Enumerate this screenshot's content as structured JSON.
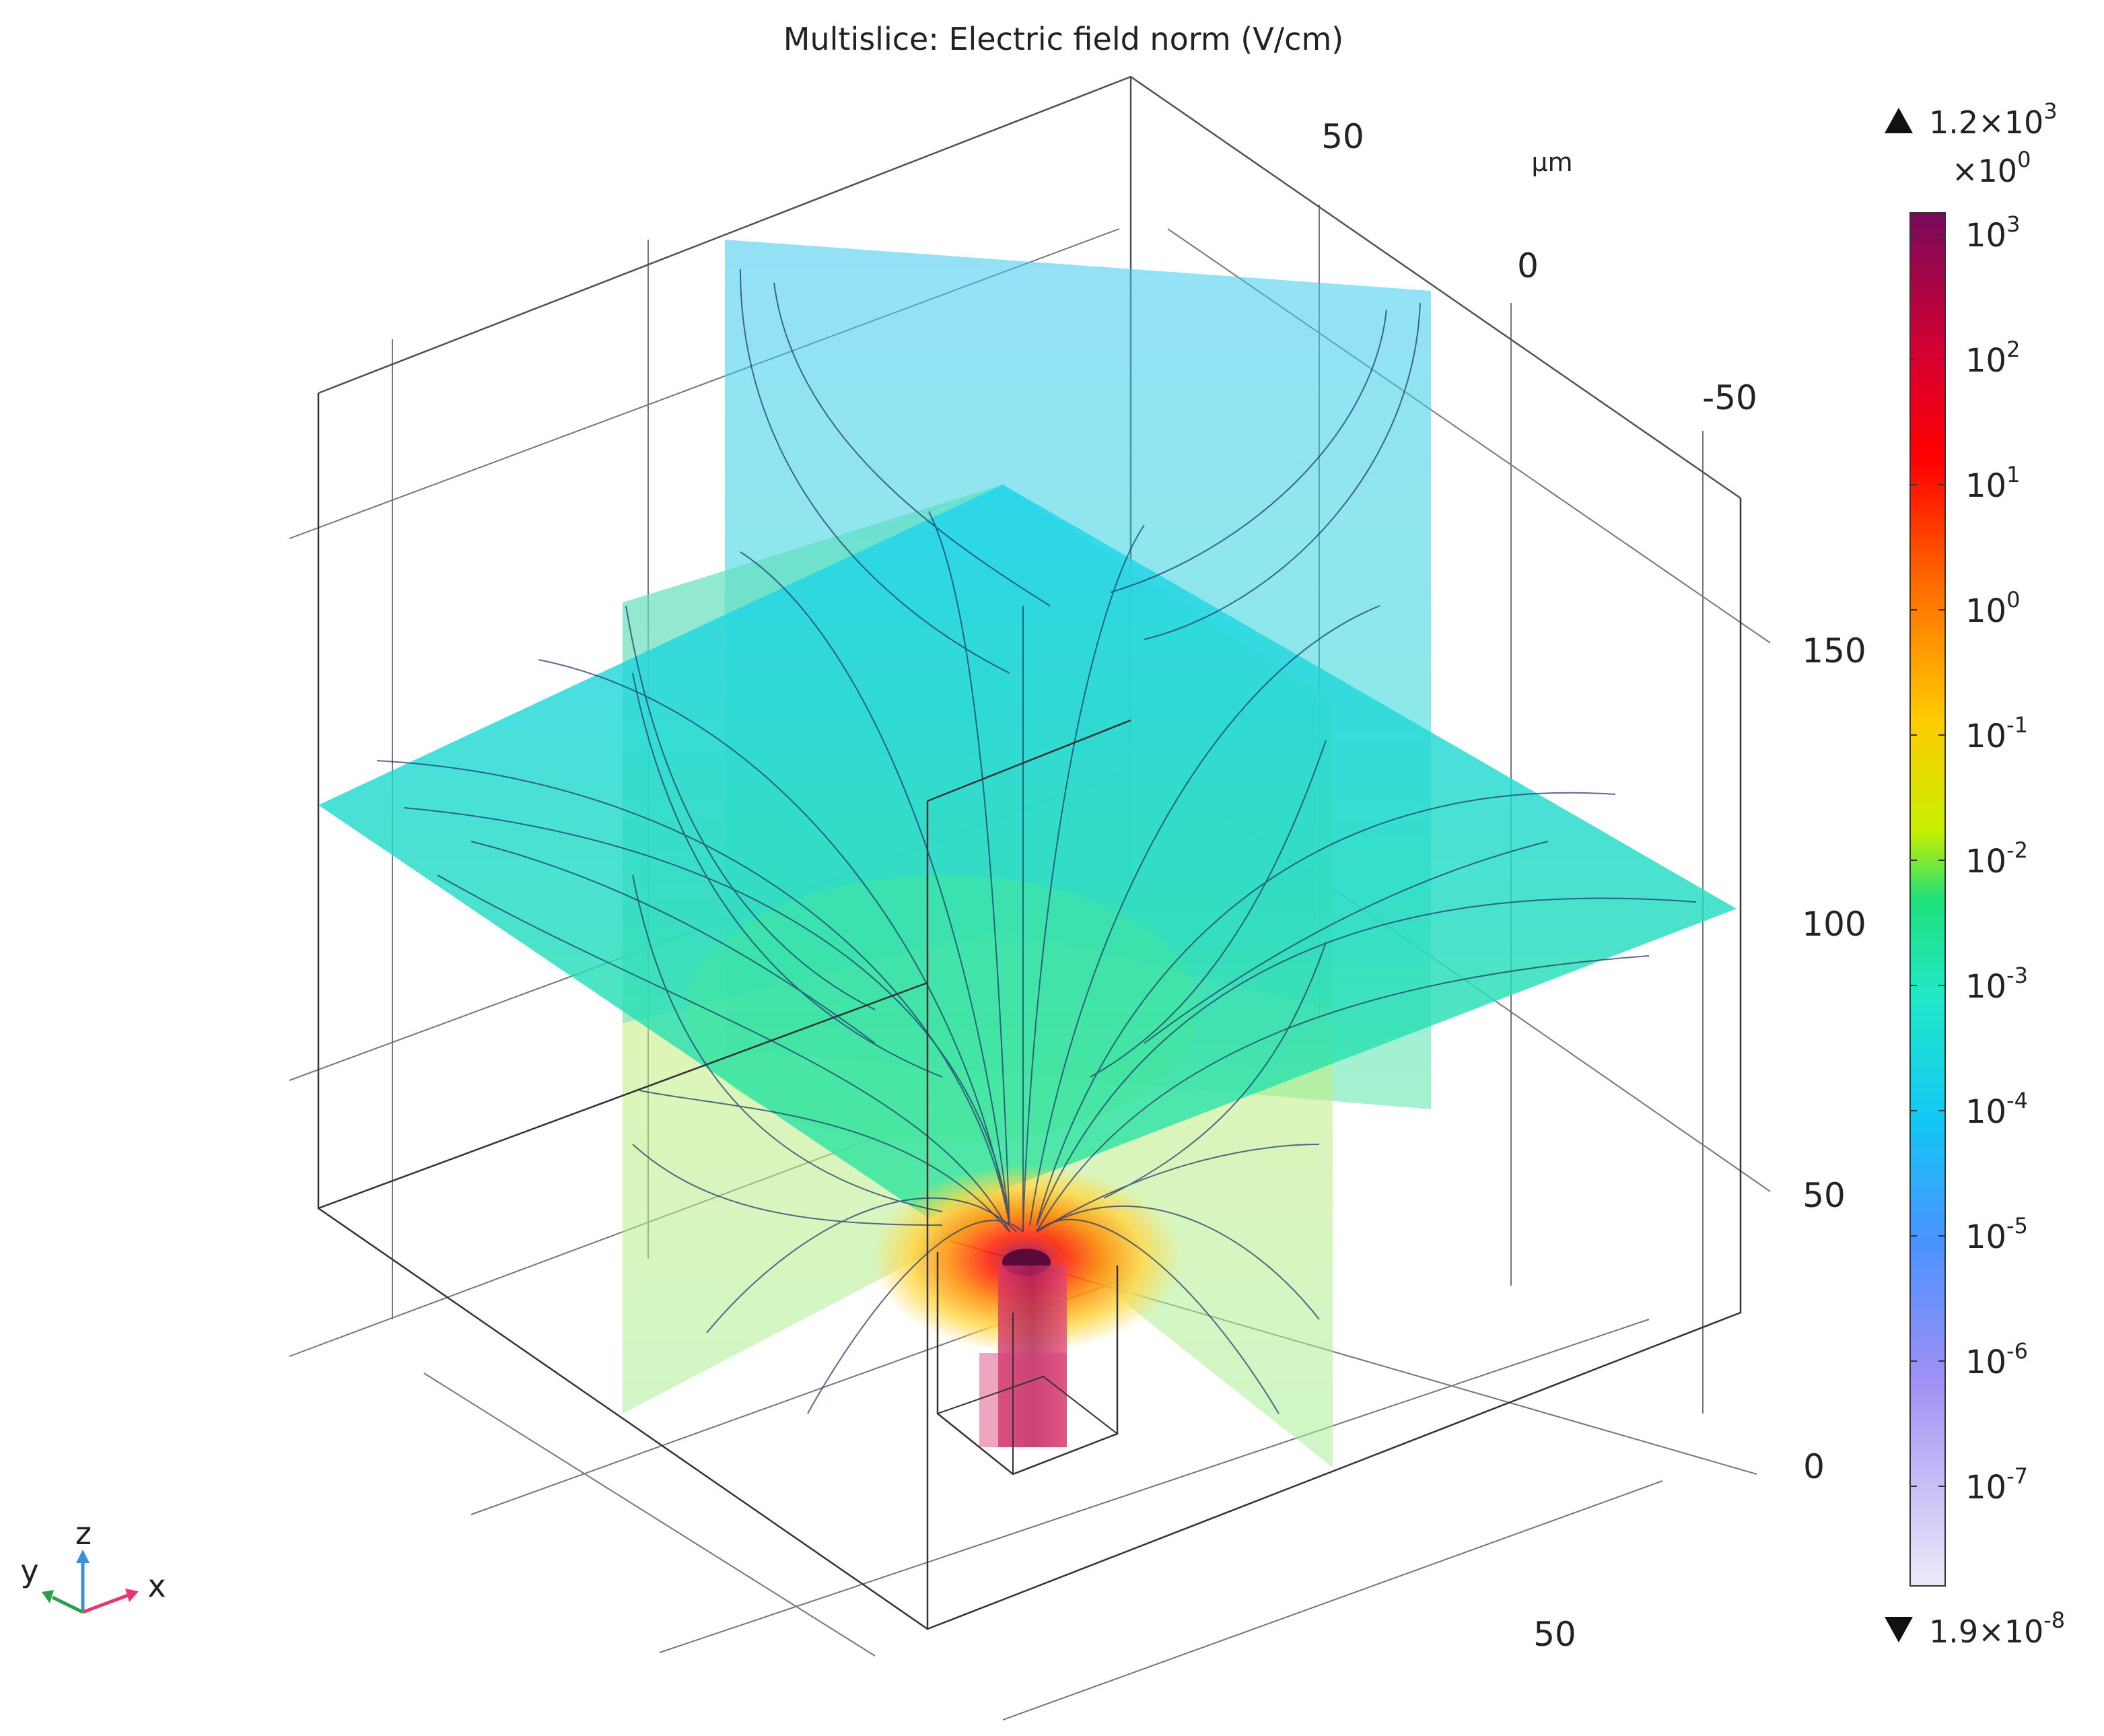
{
  "chart_data": {
    "type": "heatmap",
    "title": "Multislice: Electric field norm (V/cm)",
    "unit_label": "µm",
    "axis_ticks": {
      "y_top": [
        "50",
        "0",
        "-50"
      ],
      "z_right": [
        "150",
        "100",
        "50",
        "0"
      ],
      "x_bottom": [
        "50"
      ]
    },
    "colorbar": {
      "scale": "log",
      "max_label": "1.2×10",
      "max_exp": "3",
      "mult_label": "×10",
      "mult_exp": "0",
      "min_label": "1.9×10",
      "min_exp": "-8",
      "ticks": [
        {
          "base": "10",
          "exp": "3"
        },
        {
          "base": "10",
          "exp": "2"
        },
        {
          "base": "10",
          "exp": "1"
        },
        {
          "base": "10",
          "exp": "0"
        },
        {
          "base": "10",
          "exp": "-1"
        },
        {
          "base": "10",
          "exp": "-2"
        },
        {
          "base": "10",
          "exp": "-3"
        },
        {
          "base": "10",
          "exp": "-4"
        },
        {
          "base": "10",
          "exp": "-5"
        },
        {
          "base": "10",
          "exp": "-6"
        },
        {
          "base": "10",
          "exp": "-7"
        }
      ],
      "colors": [
        "#780a5c",
        "#ff0000",
        "#ff6a00",
        "#ffcc00",
        "#c8f000",
        "#1ee07a",
        "#22e8c8",
        "#12c8f4",
        "#4a92ff",
        "#a090f4",
        "#ecebf8"
      ]
    },
    "triad": {
      "z": "z",
      "y": "y",
      "x": "x"
    },
    "triad_colors": {
      "z": "#3a8fd6",
      "y": "#2aa04a",
      "x": "#e23a6e"
    }
  }
}
